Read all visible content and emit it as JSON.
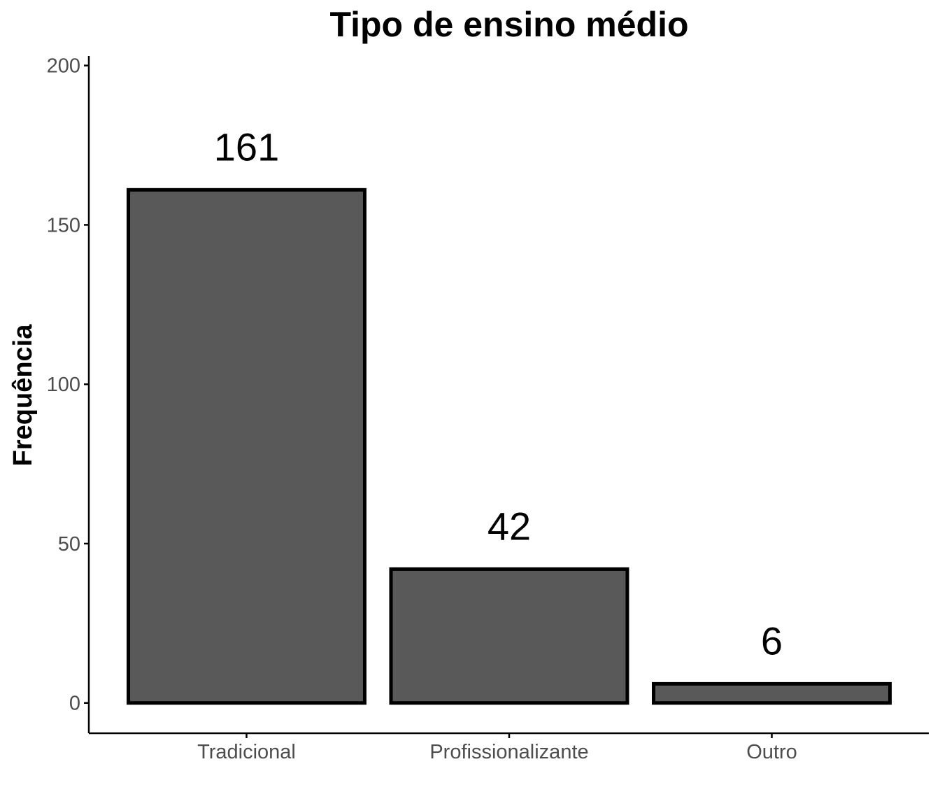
{
  "chart_data": {
    "type": "bar",
    "title": "Tipo de ensino médio",
    "xlabel": "",
    "ylabel": "Frequência",
    "categories": [
      "Tradicional",
      "Profissionalizante",
      "Outro"
    ],
    "values": [
      161,
      42,
      6
    ],
    "data_labels": [
      "161",
      "42",
      "6"
    ],
    "yticks": [
      0,
      50,
      100,
      150,
      200
    ],
    "ytick_labels": [
      "0",
      "50",
      "100",
      "150",
      "200"
    ],
    "ylim": [
      -9.5,
      203
    ],
    "grid": false,
    "legend": "none",
    "colors": {
      "bar_fill": "#595959",
      "bar_outline": "#000000",
      "text": "#000000",
      "tick_text": "#4d4d4d"
    }
  }
}
